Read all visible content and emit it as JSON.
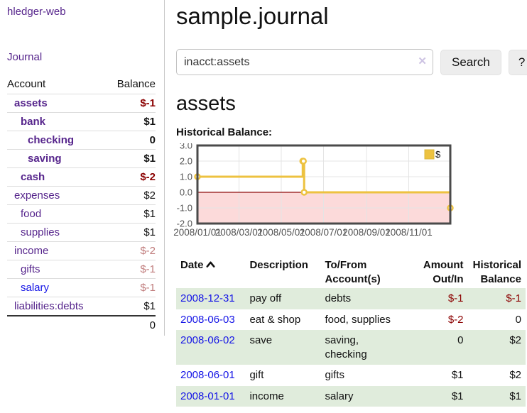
{
  "colors": {
    "link_purple": "#56258c",
    "link_blue": "#1414e6",
    "negative_strong": "#8b0000",
    "negative_soft": "#c07c7c",
    "row_green": "#e0ecdc",
    "accent_gold": "#edc240"
  },
  "sidebar": {
    "brand": "hledger-web",
    "journal_link": "Journal",
    "accounts_table": {
      "headers": {
        "account": "Account",
        "balance": "Balance"
      },
      "rows": [
        {
          "name": "assets",
          "balance": "$-1",
          "indent": 1,
          "bold": true,
          "balance_color": "negative-strong"
        },
        {
          "name": "bank",
          "balance": "$1",
          "indent": 2,
          "bold": true,
          "balance_color": "normal"
        },
        {
          "name": "checking",
          "balance": "0",
          "indent": 3,
          "bold": true,
          "balance_color": "normal"
        },
        {
          "name": "saving",
          "balance": "$1",
          "indent": 3,
          "bold": true,
          "balance_color": "normal"
        },
        {
          "name": "cash",
          "balance": "$-2",
          "indent": 2,
          "bold": true,
          "balance_color": "negative-strong"
        },
        {
          "name": "expenses",
          "balance": "$2",
          "indent": 1,
          "bold": false,
          "balance_color": "normal"
        },
        {
          "name": "food",
          "balance": "$1",
          "indent": 2,
          "bold": false,
          "balance_color": "normal"
        },
        {
          "name": "supplies",
          "balance": "$1",
          "indent": 2,
          "bold": false,
          "balance_color": "normal"
        },
        {
          "name": "income",
          "balance": "$-2",
          "indent": 1,
          "bold": false,
          "balance_color": "negative-soft"
        },
        {
          "name": "gifts",
          "balance": "$-1",
          "indent": 2,
          "bold": false,
          "balance_color": "negative-soft"
        },
        {
          "name": "salary",
          "balance": "$-1",
          "indent": 2,
          "bold": false,
          "balance_color": "negative-soft",
          "link_color": "blue"
        },
        {
          "name": "liabilities:debts",
          "balance": "$1",
          "indent": 1,
          "bold": false,
          "balance_color": "normal"
        }
      ],
      "total": "0"
    }
  },
  "main": {
    "title": "sample.journal",
    "search": {
      "value": "inacct:assets",
      "clear_icon": "✕",
      "button": "Search",
      "help_button": "?"
    },
    "account_heading": "assets"
  },
  "chart_data": {
    "type": "line",
    "title": "Historical Balance:",
    "step": true,
    "legend_position": "top-right",
    "series": [
      {
        "name": "$",
        "color": "#edc240",
        "points": [
          {
            "date": "2008-01-01",
            "value": 1
          },
          {
            "date": "2008-06-01",
            "value": 2
          },
          {
            "date": "2008-06-02",
            "value": 2
          },
          {
            "date": "2008-06-03",
            "value": 0
          },
          {
            "date": "2008-12-31",
            "value": -1
          }
        ]
      }
    ],
    "xrange": [
      "2008-01-01",
      "2008-12-31"
    ],
    "ylim": [
      -2,
      3
    ],
    "yticks": [
      {
        "label": "3.0",
        "value": 3
      },
      {
        "label": "2.0",
        "value": 2
      },
      {
        "label": "1.0",
        "value": 1
      },
      {
        "label": "0.0",
        "value": 0
      },
      {
        "label": "-1.0",
        "value": -1
      },
      {
        "label": "-2.0",
        "value": -2
      }
    ],
    "xticks": [
      {
        "label": "2008/01/01",
        "date": "2008-01-01"
      },
      {
        "label": "2008/03/01",
        "date": "2008-03-01"
      },
      {
        "label": "2008/05/01",
        "date": "2008-05-01"
      },
      {
        "label": "2008/07/01",
        "date": "2008-07-01"
      },
      {
        "label": "2008/09/01",
        "date": "2008-09-01"
      },
      {
        "label": "2008/11/01",
        "date": "2008-11-01"
      }
    ],
    "grid": true,
    "negative_region_fill": "#fcdada",
    "zero_line_color": "#8f0e0e",
    "plot_border_color": "#4a4a4a",
    "grid_color": "#e4e4e4",
    "axis_text_color": "#545454"
  },
  "register": {
    "headers": {
      "date": "Date",
      "description": "Description",
      "tofrom": [
        "To/From",
        "Account(s)"
      ],
      "amount": [
        "Amount",
        "Out/In"
      ],
      "balance": [
        "Historical",
        "Balance"
      ]
    },
    "rows": [
      {
        "date": "2008-12-31",
        "description": "pay off",
        "accounts": [
          "debts"
        ],
        "amount": "$-1",
        "amount_negative": true,
        "balance": "$-1",
        "balance_negative": true
      },
      {
        "date": "2008-06-03",
        "description": "eat & shop",
        "accounts": [
          "food, supplies"
        ],
        "amount": "$-2",
        "amount_negative": true,
        "balance": "0",
        "balance_negative": false
      },
      {
        "date": "2008-06-02",
        "description": "save",
        "accounts": [
          "saving,",
          "checking"
        ],
        "amount": "0",
        "amount_negative": false,
        "balance": "$2",
        "balance_negative": false
      },
      {
        "date": "2008-06-01",
        "description": "gift",
        "accounts": [
          "gifts"
        ],
        "amount": "$1",
        "amount_negative": false,
        "balance": "$2",
        "balance_negative": false
      },
      {
        "date": "2008-01-01",
        "description": "income",
        "accounts": [
          "salary"
        ],
        "amount": "$1",
        "amount_negative": false,
        "balance": "$1",
        "balance_negative": false
      }
    ]
  }
}
